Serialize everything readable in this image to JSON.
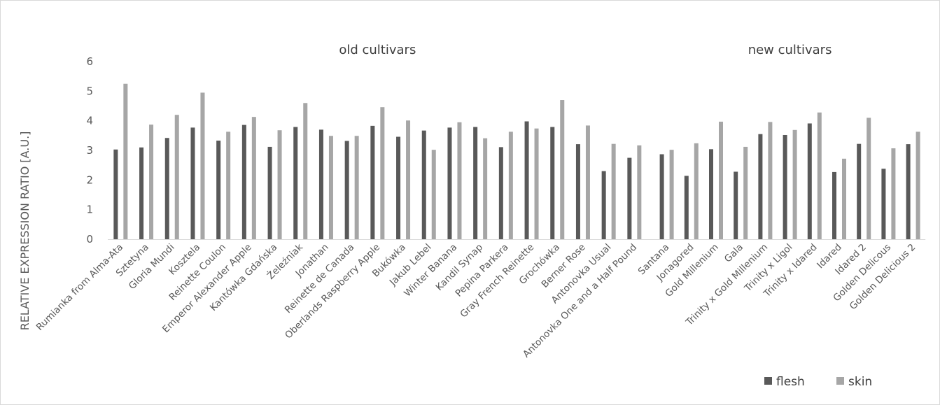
{
  "chart_data": {
    "type": "bar",
    "title": "",
    "xlabel": "",
    "ylabel": "RELATIVE EXPRESSION RATIO  [A.U.]",
    "ylim": [
      0,
      6
    ],
    "yticks": [
      0,
      1,
      2,
      3,
      4,
      5,
      6
    ],
    "grid": false,
    "legend_position": "bottom-right",
    "colors": {
      "flesh": "#595959",
      "skin": "#a6a6a6",
      "axis": "#d9d9d9"
    },
    "groups": [
      {
        "label": "old cultivars",
        "categories": [
          "Rumianka from Alma-Ata",
          "Sztetyna",
          "Gloria Mundi",
          "Kosztela",
          "Reinette Coulon",
          "Emperor Alexander Apple",
          "Kantówka Gdańska",
          "Żeleźniak",
          "Jonathan",
          "Reinette de Canada",
          "Oberlands Raspberry Apple",
          "Bukówka",
          "Jakub Lebel",
          "Winter Banana",
          "Kandil Synap",
          "Pepina Parkera",
          "Gray French Reinette",
          "Grochówka",
          "Berner Rose",
          "Antonovka Usual",
          "Antonovka One and a Half Pound"
        ]
      },
      {
        "label": "new cultivars",
        "categories": [
          "Santana",
          "Jonagored",
          "Gold Millenium",
          "Gala",
          "Trinity x Gold Millenium",
          "Trinity x Ligol",
          "Trinity x Idared",
          "Idared",
          "Idared 2",
          "Golden Delicous",
          "Golden Delicious 2"
        ]
      }
    ],
    "categories": [
      "Rumianka from Alma-Ata",
      "Sztetyna",
      "Gloria Mundi",
      "Kosztela",
      "Reinette Coulon",
      "Emperor Alexander Apple",
      "Kantówka Gdańska",
      "Żeleźniak",
      "Jonathan",
      "Reinette de Canada",
      "Oberlands Raspberry Apple",
      "Bukówka",
      "Jakub Lebel",
      "Winter Banana",
      "Kandil Synap",
      "Pepina Parkera",
      "Gray French Reinette",
      "Grochówka",
      "Berner Rose",
      "Antonovka Usual",
      "Antonovka One and a Half Pound",
      "Santana",
      "Jonagored",
      "Gold Millenium",
      "Gala",
      "Trinity x Gold Millenium",
      "Trinity x Ligol",
      "Trinity x Idared",
      "Idared",
      "Idared 2",
      "Golden Delicous",
      "Golden Delicious 2"
    ],
    "series": [
      {
        "name": "flesh",
        "values": [
          3.03,
          3.1,
          3.42,
          3.77,
          3.33,
          3.86,
          3.12,
          3.79,
          3.7,
          3.32,
          3.83,
          3.46,
          3.67,
          3.77,
          3.79,
          3.11,
          3.98,
          3.79,
          3.21,
          2.3,
          2.75,
          2.87,
          2.14,
          3.04,
          2.28,
          3.55,
          3.52,
          3.91,
          2.27,
          3.22,
          2.38,
          3.21
        ]
      },
      {
        "name": "skin",
        "values": [
          5.25,
          3.87,
          4.2,
          4.95,
          3.63,
          4.13,
          3.68,
          4.6,
          3.49,
          3.49,
          4.46,
          4.01,
          3.02,
          3.95,
          3.41,
          3.63,
          3.74,
          4.7,
          3.84,
          3.22,
          3.17,
          3.02,
          3.24,
          3.97,
          3.12,
          3.96,
          3.69,
          4.28,
          2.72,
          4.1,
          3.07,
          3.63
        ]
      }
    ]
  }
}
